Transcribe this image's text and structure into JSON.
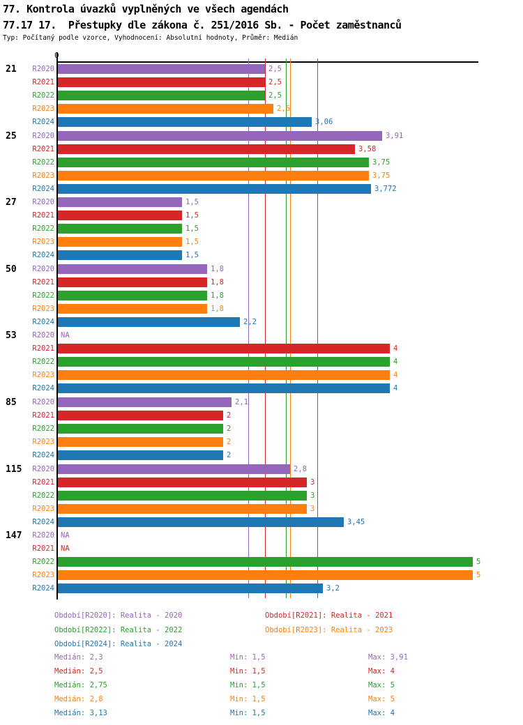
{
  "header": {
    "title1": "77. Kontrola úvazků vyplněných ve všech agendách",
    "title2": "77.17 17.  Přestupky dle zákona č. 251/2016 Sb. - Počet zaměstnanců",
    "subtitle": "Typ: Počítaný podle vzorce, Vyhodnocení: Absolutní hodnoty, Průměr: Medián"
  },
  "chart_data": {
    "type": "bar",
    "orientation": "horizontal",
    "title": "77.17 17.  Přestupky dle zákona č. 251/2016 Sb. - Počet zaměstnanců",
    "xlabel": "",
    "ylabel": "",
    "xlim": [
      0,
      5
    ],
    "axis_origin_label": "0",
    "grid": false,
    "series_order": [
      "R2020",
      "R2021",
      "R2022",
      "R2023",
      "R2024"
    ],
    "series_colors": {
      "R2020": "#9467bd",
      "R2021": "#d62728",
      "R2022": "#2ca02c",
      "R2023": "#ff7f0e",
      "R2024": "#1f77b4"
    },
    "median_lines": {
      "R2020": 2.3,
      "R2021": 2.5,
      "R2022": 2.75,
      "R2023": 2.8,
      "R2024": 3.13
    },
    "groups": [
      {
        "label": "21",
        "rows": [
          {
            "series": "R2020",
            "value": 2.5,
            "display": "2,5"
          },
          {
            "series": "R2021",
            "value": 2.5,
            "display": "2,5"
          },
          {
            "series": "R2022",
            "value": 2.5,
            "display": "2,5"
          },
          {
            "series": "R2023",
            "value": 2.6,
            "display": "2,6"
          },
          {
            "series": "R2024",
            "value": 3.06,
            "display": "3,06"
          }
        ]
      },
      {
        "label": "25",
        "rows": [
          {
            "series": "R2020",
            "value": 3.91,
            "display": "3,91"
          },
          {
            "series": "R2021",
            "value": 3.58,
            "display": "3,58"
          },
          {
            "series": "R2022",
            "value": 3.75,
            "display": "3,75"
          },
          {
            "series": "R2023",
            "value": 3.75,
            "display": "3,75"
          },
          {
            "series": "R2024",
            "value": 3.772,
            "display": "3,772"
          }
        ]
      },
      {
        "label": "27",
        "rows": [
          {
            "series": "R2020",
            "value": 1.5,
            "display": "1,5"
          },
          {
            "series": "R2021",
            "value": 1.5,
            "display": "1,5"
          },
          {
            "series": "R2022",
            "value": 1.5,
            "display": "1,5"
          },
          {
            "series": "R2023",
            "value": 1.5,
            "display": "1,5"
          },
          {
            "series": "R2024",
            "value": 1.5,
            "display": "1,5"
          }
        ]
      },
      {
        "label": "50",
        "rows": [
          {
            "series": "R2020",
            "value": 1.8,
            "display": "1,8"
          },
          {
            "series": "R2021",
            "value": 1.8,
            "display": "1,8"
          },
          {
            "series": "R2022",
            "value": 1.8,
            "display": "1,8"
          },
          {
            "series": "R2023",
            "value": 1.8,
            "display": "1,8"
          },
          {
            "series": "R2024",
            "value": 2.2,
            "display": "2,2"
          }
        ]
      },
      {
        "label": "53",
        "rows": [
          {
            "series": "R2020",
            "value": null,
            "display": "NA"
          },
          {
            "series": "R2021",
            "value": 4,
            "display": "4"
          },
          {
            "series": "R2022",
            "value": 4,
            "display": "4"
          },
          {
            "series": "R2023",
            "value": 4,
            "display": "4"
          },
          {
            "series": "R2024",
            "value": 4,
            "display": "4"
          }
        ]
      },
      {
        "label": "85",
        "rows": [
          {
            "series": "R2020",
            "value": 2.1,
            "display": "2,1"
          },
          {
            "series": "R2021",
            "value": 2,
            "display": "2"
          },
          {
            "series": "R2022",
            "value": 2,
            "display": "2"
          },
          {
            "series": "R2023",
            "value": 2,
            "display": "2"
          },
          {
            "series": "R2024",
            "value": 2,
            "display": "2"
          }
        ]
      },
      {
        "label": "115",
        "rows": [
          {
            "series": "R2020",
            "value": 2.8,
            "display": "2,8"
          },
          {
            "series": "R2021",
            "value": 3,
            "display": "3"
          },
          {
            "series": "R2022",
            "value": 3,
            "display": "3"
          },
          {
            "series": "R2023",
            "value": 3,
            "display": "3"
          },
          {
            "series": "R2024",
            "value": 3.45,
            "display": "3,45"
          }
        ]
      },
      {
        "label": "147",
        "rows": [
          {
            "series": "R2020",
            "value": null,
            "display": "NA"
          },
          {
            "series": "R2021",
            "value": null,
            "display": "NA"
          },
          {
            "series": "R2022",
            "value": 5,
            "display": "5"
          },
          {
            "series": "R2023",
            "value": 5,
            "display": "5"
          },
          {
            "series": "R2024",
            "value": 3.2,
            "display": "3,2"
          }
        ]
      }
    ]
  },
  "legend": {
    "items": [
      {
        "series": "R2020",
        "label": "Období[R2020]: Realita - 2020"
      },
      {
        "series": "R2021",
        "label": "Období[R2021]: Realita - 2021"
      },
      {
        "series": "R2022",
        "label": "Období[R2022]: Realita - 2022"
      },
      {
        "series": "R2023",
        "label": "Období[R2023]: Realita - 2023"
      },
      {
        "series": "R2024",
        "label": "Období[R2024]: Realita - 2024"
      }
    ]
  },
  "stats": {
    "rows": [
      {
        "series": "R2020",
        "median": "Medián: 2,3",
        "min": "Min: 1,5",
        "max": "Max: 3,91"
      },
      {
        "series": "R2021",
        "median": "Medián: 2,5",
        "min": "Min: 1,5",
        "max": "Max: 4"
      },
      {
        "series": "R2022",
        "median": "Medián: 2,75",
        "min": "Min: 1,5",
        "max": "Max: 5"
      },
      {
        "series": "R2023",
        "median": "Medián: 2,8",
        "min": "Min: 1,5",
        "max": "Max: 5"
      },
      {
        "series": "R2024",
        "median": "Medián: 3,13",
        "min": "Min: 1,5",
        "max": "Max: 4"
      }
    ]
  }
}
